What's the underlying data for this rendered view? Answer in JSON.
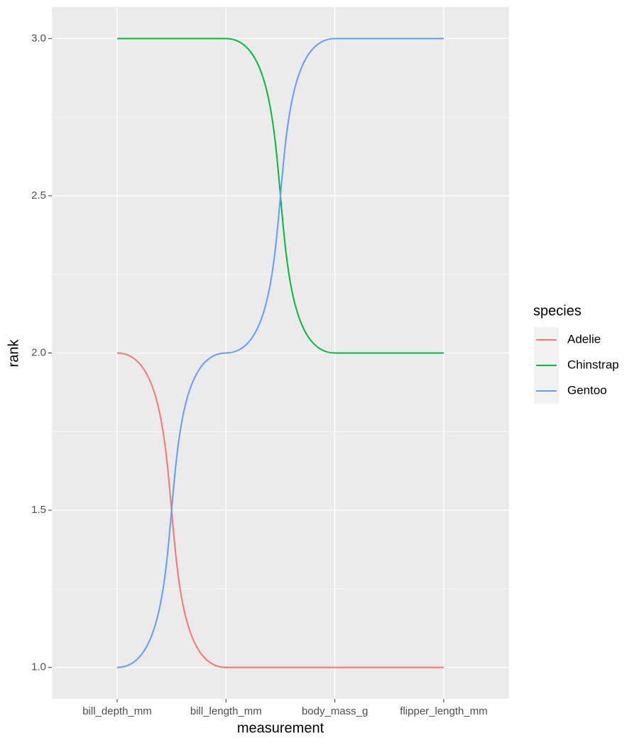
{
  "chart_data": {
    "type": "bump",
    "x_label": "measurement",
    "y_label": "rank",
    "categories": [
      "bill_depth_mm",
      "bill_length_mm",
      "body_mass_g",
      "flipper_length_mm"
    ],
    "series": [
      {
        "name": "Adelie",
        "color": "#F8766D",
        "values": [
          2,
          1,
          1,
          1
        ]
      },
      {
        "name": "Chinstrap",
        "color": "#00BA38",
        "values": [
          3,
          3,
          2,
          2
        ]
      },
      {
        "name": "Gentoo",
        "color": "#619CFF",
        "values": [
          1,
          2,
          3,
          3
        ]
      }
    ],
    "ylim": [
      0.9,
      3.1
    ],
    "yticks": [
      {
        "value": 1,
        "label": "1.0"
      },
      1.5,
      {
        "value": 2,
        "label": "2.0"
      },
      2.5,
      {
        "value": 3,
        "label": "3.0"
      }
    ],
    "legend_title": "species",
    "legend_position": "right",
    "grid": true
  }
}
